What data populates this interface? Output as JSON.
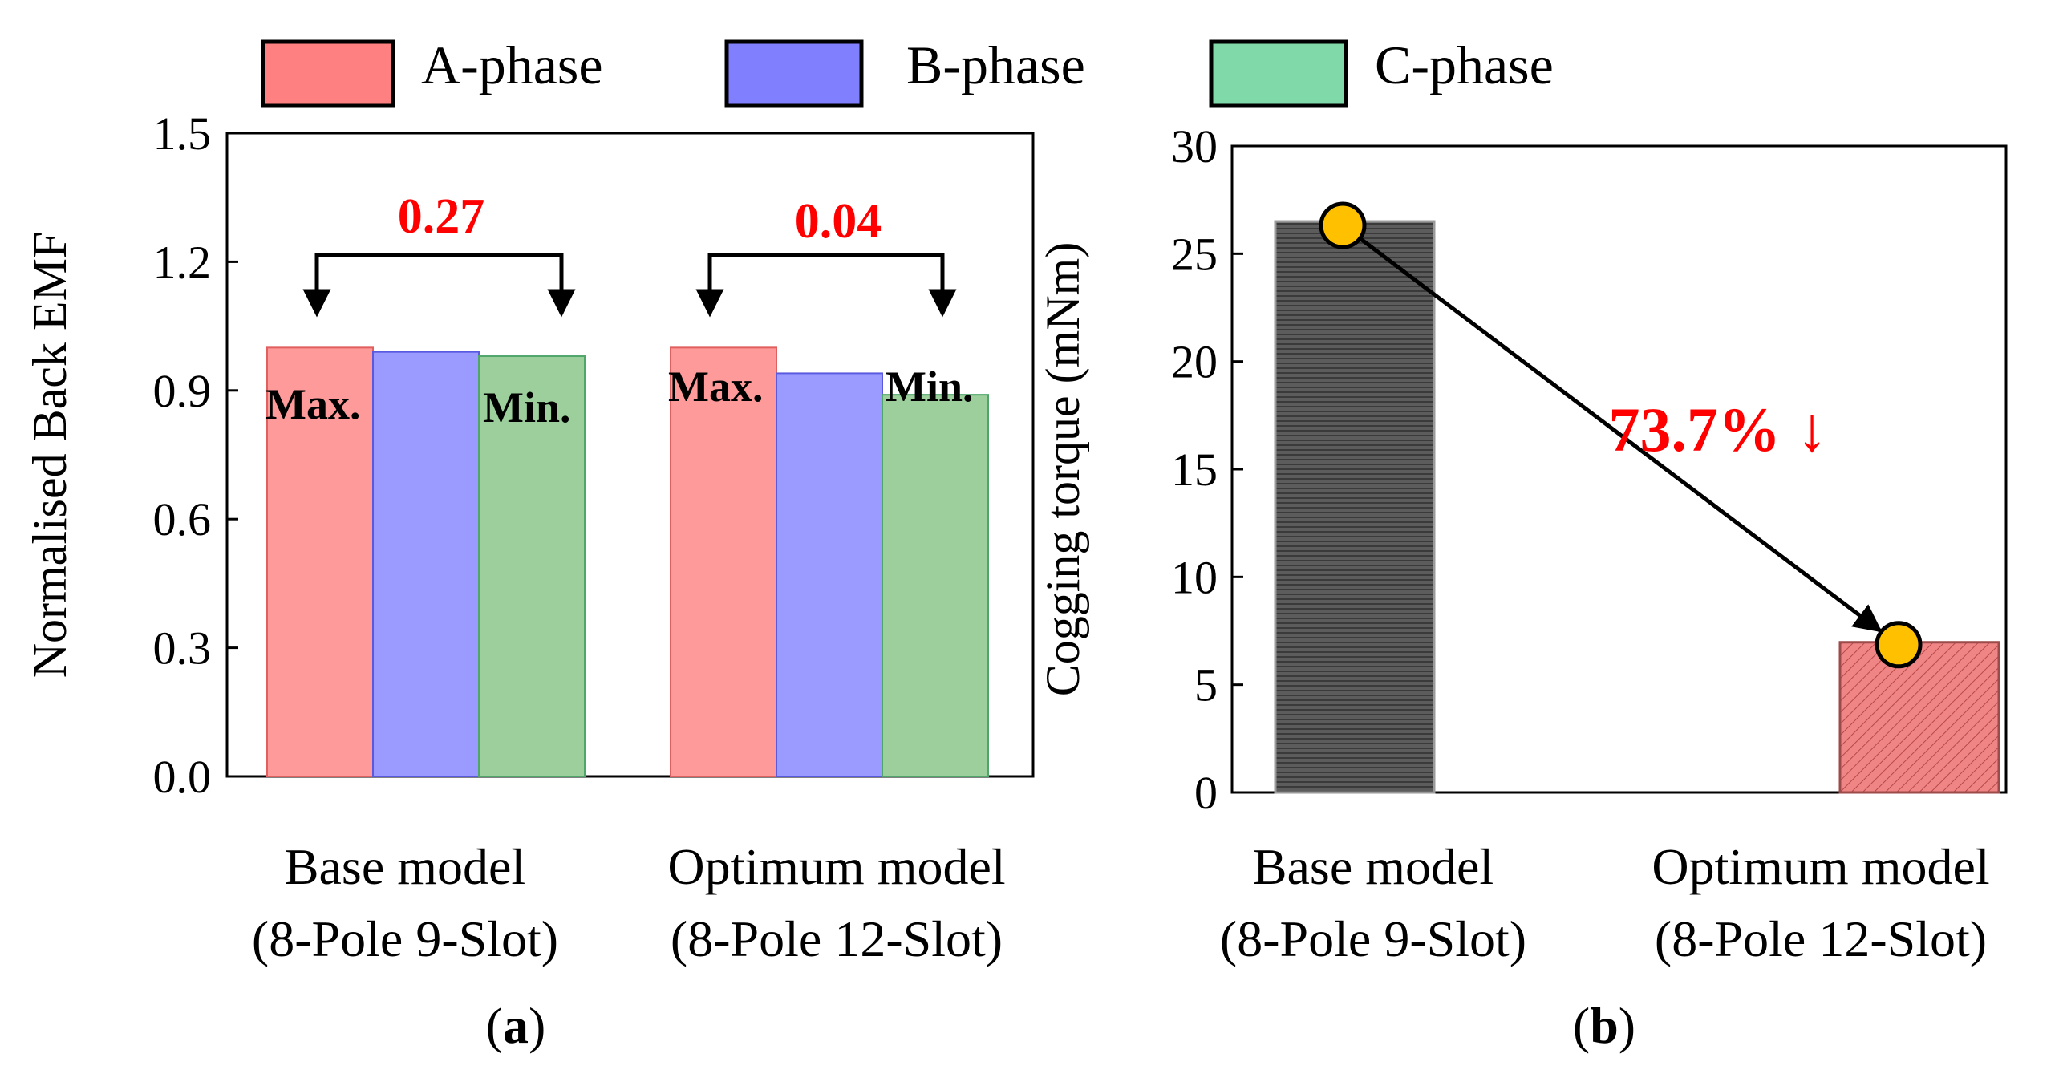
{
  "legend": {
    "entries": [
      {
        "label": "A-phase",
        "color": "#ff8080"
      },
      {
        "label": "B-phase",
        "color": "#8080ff"
      },
      {
        "label": "C-phase",
        "color": "#80d9a8"
      }
    ]
  },
  "panel_labels": {
    "a": {
      "open": "(",
      "letter": "a",
      "close": ")"
    },
    "b": {
      "open": "(",
      "letter": "b",
      "close": ")"
    }
  },
  "colors": {
    "a_phase_bar": "#ff9a9a",
    "b_phase_bar": "#9b9bff",
    "c_phase_bar": "#9ccf9c",
    "base_bar": "#5a5a5a",
    "optimum_bar": "#ef8282",
    "marker": "#ffc000",
    "annotation_red": "#ff0000"
  },
  "chart_data": [
    {
      "type": "bar",
      "ylabel": "Normalised Back EMF",
      "ylim": [
        0.0,
        1.5
      ],
      "yticks": [
        "0.0",
        "0.3",
        "0.6",
        "0.9",
        "1.2",
        "1.5"
      ],
      "categories": [
        {
          "line1": "Base model",
          "line2": "(8-Pole 9-Slot)"
        },
        {
          "line1": "Optimum model",
          "line2": "(8-Pole 12-Slot)"
        }
      ],
      "series": [
        {
          "name": "A-phase",
          "values": [
            1.0,
            1.0
          ]
        },
        {
          "name": "B-phase",
          "values": [
            0.99,
            0.94
          ]
        },
        {
          "name": "C-phase",
          "values": [
            0.98,
            0.89
          ]
        }
      ],
      "annotations": {
        "max_label": "Max.",
        "min_label": "Min.",
        "ranges": [
          "0.27",
          "0.04"
        ]
      },
      "legend_position": "top"
    },
    {
      "type": "bar",
      "ylabel": "Cogging torque (mNm)",
      "ylim": [
        0,
        30
      ],
      "yticks": [
        "0",
        "5",
        "10",
        "15",
        "20",
        "25",
        "30"
      ],
      "categories": [
        {
          "line1": "Base model",
          "line2": "(8-Pole 9-Slot)"
        },
        {
          "line1": "Optimum model",
          "line2": "(8-Pole 12-Slot)"
        }
      ],
      "values": [
        26.5,
        6.97
      ],
      "annotation": "73.7% ↓"
    }
  ]
}
